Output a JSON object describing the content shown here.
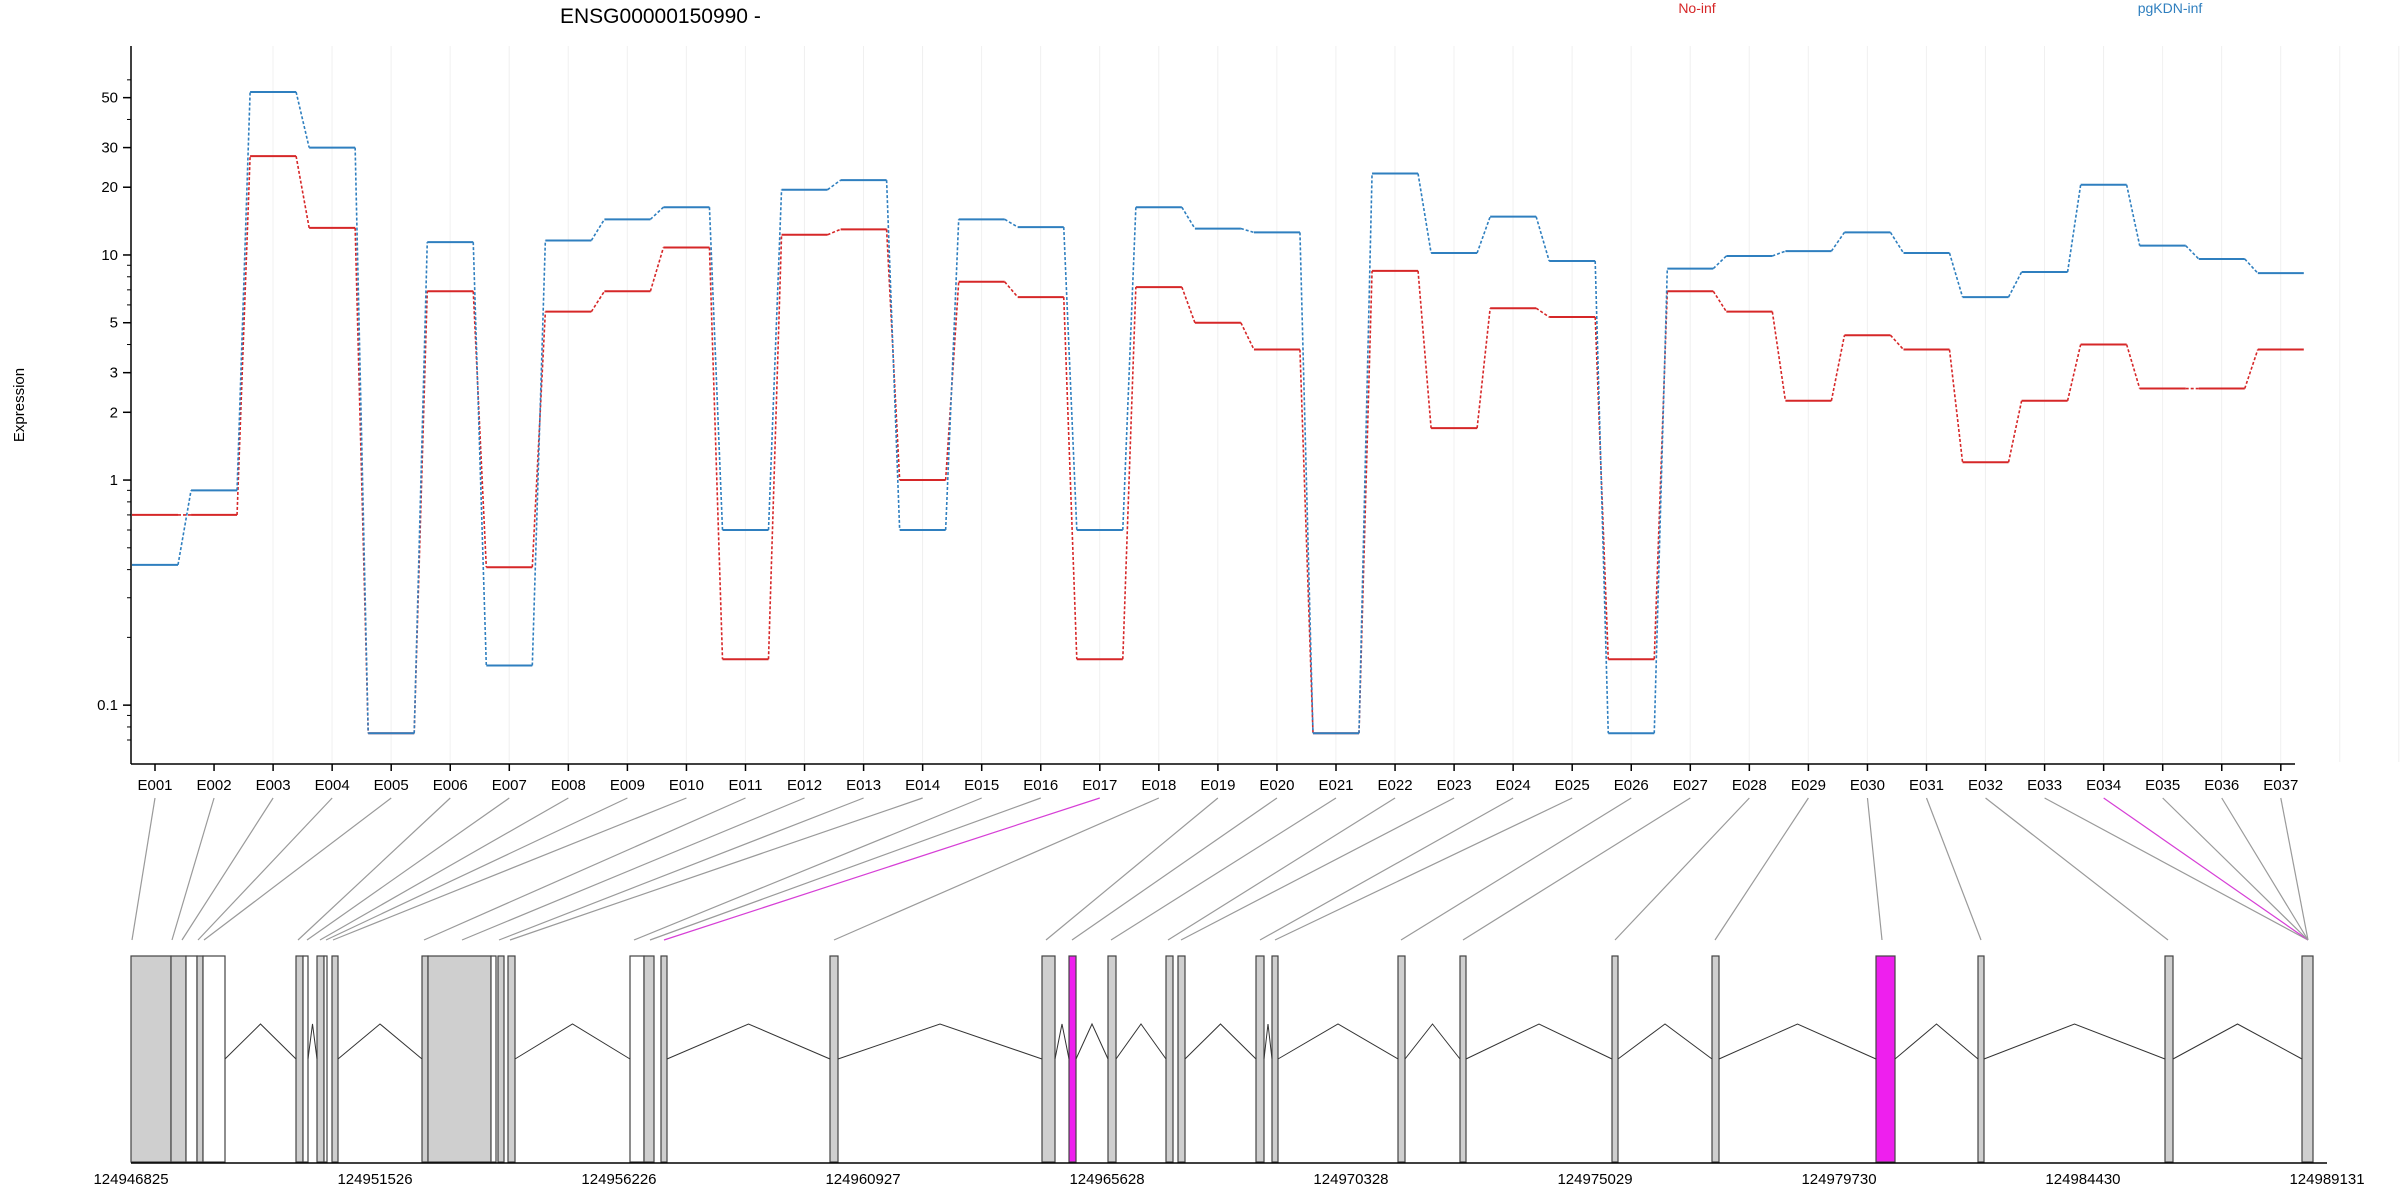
{
  "chart_data": {
    "type": "line",
    "title": "ENSG00000150990 -",
    "ylabel": "Expression",
    "y_scale": "log",
    "ylim": [
      0.07,
      65
    ],
    "y_ticks": [
      {
        "value": 0.1,
        "label": "0.1"
      },
      {
        "value": 1,
        "label": "1"
      },
      {
        "value": 2,
        "label": "2"
      },
      {
        "value": 3,
        "label": "3"
      },
      {
        "value": 5,
        "label": "5"
      },
      {
        "value": 10,
        "label": "10"
      },
      {
        "value": 20,
        "label": "20"
      },
      {
        "value": 30,
        "label": "30"
      },
      {
        "value": 50,
        "label": "50"
      }
    ],
    "categories": [
      "E001",
      "E002",
      "E003",
      "E004",
      "E005",
      "E006",
      "E007",
      "E008",
      "E009",
      "E010",
      "E011",
      "E012",
      "E013",
      "E014",
      "E015",
      "E016",
      "E017",
      "E018",
      "E019",
      "E020",
      "E021",
      "E022",
      "E023",
      "E024",
      "E025",
      "E026",
      "E027",
      "E028",
      "E029",
      "E030",
      "E031",
      "E032",
      "E033",
      "E034",
      "E035",
      "E036",
      "E037"
    ],
    "highlighted_exons": [
      "E017",
      "E034"
    ],
    "legend_placement": "top",
    "series": [
      {
        "name": "No-inf",
        "color": "#d62728",
        "values": [
          0.7,
          0.7,
          27.5,
          13.2,
          0.075,
          6.9,
          0.41,
          5.6,
          6.9,
          10.8,
          0.16,
          12.3,
          13.0,
          1.0,
          7.6,
          6.5,
          0.16,
          7.2,
          5.0,
          3.8,
          0.075,
          8.5,
          1.7,
          5.8,
          5.3,
          0.16,
          6.9,
          5.6,
          2.25,
          4.4,
          3.8,
          1.2,
          2.25,
          4.0,
          2.55,
          2.55,
          3.8
        ]
      },
      {
        "name": "pgKDN-inf",
        "color": "#2f7fbf",
        "values": [
          0.42,
          0.9,
          53.0,
          30.0,
          0.075,
          11.4,
          0.15,
          11.6,
          14.4,
          16.3,
          0.6,
          19.5,
          21.5,
          0.6,
          14.4,
          13.3,
          0.6,
          16.3,
          13.1,
          12.6,
          0.075,
          23.0,
          10.2,
          14.8,
          9.4,
          0.075,
          8.7,
          9.9,
          10.4,
          12.6,
          10.2,
          6.5,
          8.4,
          20.5,
          11.0,
          9.6,
          8.3
        ]
      }
    ],
    "genomic_axis": {
      "range": [
        124946825,
        124989131
      ],
      "ticks": [
        124946825,
        124951526,
        124956226,
        124960927,
        124965628,
        124970328,
        124975029,
        124979730,
        124984430,
        124989131
      ],
      "tick_labels": [
        "124946825",
        "124951526",
        "124956226",
        "124960927",
        "124965628",
        "124970328",
        "124975029",
        "124979730",
        "124984430",
        "124989131"
      ]
    }
  }
}
